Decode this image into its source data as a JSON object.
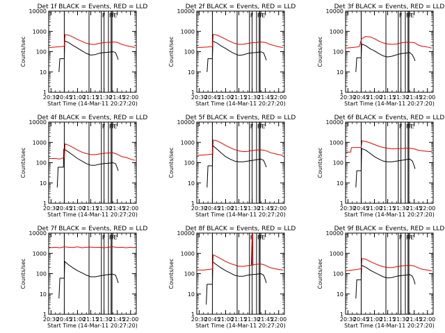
{
  "x_label": "Start Time (14-Mar-11 20:27:20)",
  "y_label": "Counts/sec",
  "x_ticks": [
    "20:30",
    "20:45",
    "21:00",
    "21:15",
    "21:30",
    "21:45",
    "22:00"
  ],
  "x_tick_minutes": [
    30,
    45,
    60,
    75,
    90,
    105,
    120
  ],
  "x_range_minutes": [
    27.33,
    126.5
  ],
  "y_ticks": [
    "1",
    "10",
    "100",
    "1000",
    "10000"
  ],
  "y_tick_values": [
    1,
    10,
    100,
    1000,
    10000
  ],
  "ylim": [
    1,
    10000
  ],
  "y_scale": "log",
  "colors": {
    "events": "#000000",
    "lld": "#dd0000"
  },
  "marker_lines_minutes": [
    45,
    73,
    87,
    90,
    95,
    98,
    99
  ],
  "flag_labels": [
    {
      "text": "F",
      "minute": 87
    },
    {
      "text": "F",
      "minute": 95
    },
    {
      "text": "F",
      "minute": 98
    },
    {
      "text": "E",
      "minute": 100
    }
  ],
  "chart_data": [
    {
      "type": "line",
      "title": "Det 1f BLACK = Events, RED = LLD",
      "series": [
        {
          "color": "#000000",
          "x": [
            39,
            40,
            45,
            45.5,
            50,
            55,
            60,
            65,
            70,
            75,
            80,
            85,
            90,
            95,
            100,
            103,
            105,
            106
          ],
          "y": [
            10,
            45,
            45,
            340,
            280,
            200,
            150,
            110,
            82,
            68,
            72,
            85,
            90,
            95,
            100,
            90,
            55,
            40
          ]
        },
        {
          "color": "#dd0000",
          "x": [
            28,
            35,
            40,
            43,
            45,
            46,
            50,
            55,
            60,
            65,
            70,
            75,
            80,
            85,
            90,
            95,
            100,
            105,
            110,
            115,
            120,
            125
          ],
          "y": [
            160,
            170,
            175,
            180,
            190,
            700,
            650,
            520,
            400,
            320,
            260,
            230,
            230,
            260,
            280,
            290,
            300,
            290,
            230,
            200,
            180,
            160
          ]
        }
      ]
    },
    {
      "type": "line",
      "title": "Det 2f BLACK = Events, RED = LLD",
      "series": [
        {
          "color": "#000000",
          "x": [
            39,
            40,
            45,
            45.5,
            50,
            55,
            60,
            65,
            70,
            75,
            80,
            85,
            90,
            95,
            100,
            103,
            105,
            106
          ],
          "y": [
            10,
            45,
            45,
            330,
            270,
            190,
            145,
            105,
            80,
            66,
            70,
            82,
            88,
            92,
            98,
            88,
            52,
            38
          ]
        },
        {
          "color": "#dd0000",
          "x": [
            28,
            35,
            40,
            43,
            45,
            46,
            50,
            55,
            60,
            65,
            70,
            75,
            80,
            85,
            90,
            95,
            100,
            105,
            110,
            115,
            120,
            125
          ],
          "y": [
            160,
            165,
            170,
            175,
            185,
            720,
            660,
            530,
            410,
            320,
            260,
            230,
            230,
            255,
            275,
            285,
            300,
            285,
            230,
            200,
            175,
            160
          ]
        }
      ]
    },
    {
      "type": "line",
      "title": "Det 3f BLACK = Events, RED = LLD",
      "series": [
        {
          "color": "#000000",
          "x": [
            39,
            40,
            45,
            45.5,
            50,
            55,
            60,
            65,
            70,
            75,
            80,
            85,
            90,
            95,
            100,
            103,
            105,
            106
          ],
          "y": [
            10,
            50,
            50,
            240,
            200,
            140,
            110,
            80,
            62,
            55,
            60,
            70,
            80,
            85,
            90,
            70,
            45,
            35
          ]
        },
        {
          "color": "#dd0000",
          "x": [
            28,
            35,
            40,
            43,
            45,
            46,
            50,
            55,
            60,
            65,
            70,
            75,
            80,
            85,
            90,
            95,
            100,
            105,
            110,
            115,
            120,
            125
          ],
          "y": [
            150,
            160,
            170,
            180,
            380,
            450,
            560,
            540,
            440,
            330,
            270,
            240,
            230,
            240,
            270,
            290,
            290,
            280,
            210,
            180,
            170,
            150
          ]
        }
      ]
    },
    {
      "type": "line",
      "title": "Det 4f BLACK = Events, RED = LLD",
      "series": [
        {
          "color": "#000000",
          "x": [
            37,
            38,
            44,
            44.5,
            50,
            55,
            60,
            65,
            70,
            75,
            80,
            85,
            90,
            95,
            100,
            103,
            105,
            106
          ],
          "y": [
            6,
            60,
            60,
            480,
            330,
            230,
            160,
            120,
            90,
            75,
            75,
            85,
            90,
            95,
            100,
            90,
            55,
            40
          ]
        },
        {
          "color": "#dd0000",
          "x": [
            28,
            35,
            40,
            43,
            45,
            46,
            50,
            55,
            60,
            65,
            70,
            75,
            80,
            85,
            90,
            95,
            100,
            105,
            110,
            115,
            120,
            125
          ],
          "y": [
            160,
            160,
            150,
            170,
            190,
            850,
            720,
            550,
            420,
            330,
            280,
            250,
            250,
            270,
            290,
            300,
            310,
            260,
            200,
            180,
            150,
            130
          ]
        }
      ]
    },
    {
      "type": "line",
      "title": "Det 5f BLACK = Events, RED = LLD",
      "series": [
        {
          "color": "#000000",
          "x": [
            39,
            40,
            45,
            45.5,
            50,
            55,
            60,
            65,
            70,
            75,
            80,
            85,
            90,
            95,
            100,
            103,
            105,
            106
          ],
          "y": [
            6,
            70,
            70,
            700,
            470,
            300,
            200,
            150,
            120,
            110,
            110,
            120,
            130,
            140,
            150,
            130,
            80,
            60
          ]
        },
        {
          "color": "#dd0000",
          "x": [
            28,
            35,
            40,
            43,
            45,
            46,
            50,
            55,
            60,
            65,
            70,
            75,
            80,
            85,
            90,
            95,
            100,
            105,
            110,
            115,
            120,
            125
          ],
          "y": [
            230,
            240,
            250,
            260,
            270,
            1300,
            1200,
            950,
            700,
            550,
            440,
            380,
            350,
            360,
            400,
            420,
            430,
            400,
            320,
            280,
            250,
            230
          ]
        }
      ]
    },
    {
      "type": "line",
      "title": "Det 6f BLACK = Events, RED = LLD",
      "series": [
        {
          "color": "#000000",
          "x": [
            39,
            40,
            45,
            45.5,
            50,
            55,
            60,
            65,
            70,
            75,
            80,
            85,
            90,
            95,
            100,
            103,
            105,
            106
          ],
          "y": [
            6,
            40,
            40,
            500,
            420,
            290,
            200,
            150,
            120,
            110,
            110,
            120,
            130,
            140,
            150,
            120,
            70,
            50
          ]
        },
        {
          "color": "#dd0000",
          "x": [
            28,
            33,
            34,
            40,
            43,
            45,
            46,
            50,
            55,
            60,
            65,
            70,
            75,
            80,
            85,
            90,
            95,
            100,
            105,
            110,
            115,
            120,
            125
          ],
          "y": [
            330,
            330,
            550,
            560,
            560,
            560,
            1200,
            1100,
            950,
            780,
            640,
            560,
            510,
            480,
            490,
            500,
            520,
            520,
            480,
            410,
            380,
            360,
            350
          ]
        }
      ]
    },
    {
      "type": "line",
      "title": "Det 7f BLACK = Events, RED = LLD",
      "series": [
        {
          "color": "#000000",
          "x": [
            39,
            40,
            45,
            45.5,
            50,
            55,
            60,
            65,
            70,
            75,
            80,
            85,
            90,
            95,
            100,
            103,
            105,
            106
          ],
          "y": [
            6,
            60,
            60,
            400,
            270,
            190,
            140,
            110,
            85,
            70,
            70,
            78,
            85,
            90,
            95,
            85,
            50,
            35
          ]
        },
        {
          "color": "#dd0000",
          "x": [
            28,
            35,
            40,
            45,
            50,
            55,
            60,
            65,
            70,
            75,
            80,
            85,
            90,
            95,
            100,
            105,
            110,
            115,
            120,
            125
          ],
          "y": [
            1900,
            2000,
            1900,
            2100,
            2000,
            1950,
            2100,
            1900,
            2000,
            2050,
            1950,
            2000,
            1900,
            2000,
            2100,
            1950,
            2000,
            1900,
            2000,
            1900
          ]
        }
      ]
    },
    {
      "type": "line",
      "title": "Det 8f BLACK = Events, RED = LLD",
      "series": [
        {
          "color": "#000000",
          "x": [
            38,
            39,
            45,
            45.5,
            50,
            55,
            60,
            65,
            70,
            75,
            80,
            85,
            90,
            95,
            100,
            103,
            105,
            106
          ],
          "y": [
            3,
            30,
            30,
            380,
            270,
            190,
            140,
            110,
            85,
            75,
            75,
            85,
            90,
            95,
            100,
            85,
            50,
            35
          ]
        },
        {
          "color": "#dd0000",
          "x": [
            28,
            35,
            40,
            43,
            45,
            46,
            50,
            55,
            60,
            65,
            70,
            75,
            80,
            85,
            89,
            90,
            90.5,
            91,
            92,
            95,
            100,
            105,
            110,
            115,
            120,
            125
          ],
          "y": [
            150,
            150,
            160,
            165,
            170,
            850,
            700,
            530,
            400,
            320,
            270,
            230,
            230,
            250,
            260,
            9000,
            9000,
            260,
            280,
            290,
            300,
            260,
            200,
            180,
            160,
            150
          ]
        }
      ]
    },
    {
      "type": "line",
      "title": "Det 9f BLACK = Events, RED = LLD",
      "series": [
        {
          "color": "#000000",
          "x": [
            39,
            40,
            45,
            45.5,
            50,
            55,
            60,
            65,
            70,
            75,
            80,
            85,
            90,
            95,
            100,
            103,
            105,
            106
          ],
          "y": [
            6,
            50,
            50,
            260,
            210,
            150,
            115,
            90,
            70,
            62,
            65,
            75,
            80,
            85,
            90,
            75,
            45,
            30
          ]
        },
        {
          "color": "#dd0000",
          "x": [
            28,
            35,
            40,
            43,
            45,
            46,
            50,
            55,
            60,
            65,
            70,
            75,
            80,
            85,
            90,
            95,
            100,
            105,
            110,
            115,
            120,
            125
          ],
          "y": [
            140,
            150,
            160,
            170,
            180,
            560,
            520,
            400,
            320,
            260,
            220,
            200,
            200,
            220,
            240,
            250,
            260,
            240,
            190,
            160,
            150,
            140
          ]
        }
      ]
    }
  ]
}
